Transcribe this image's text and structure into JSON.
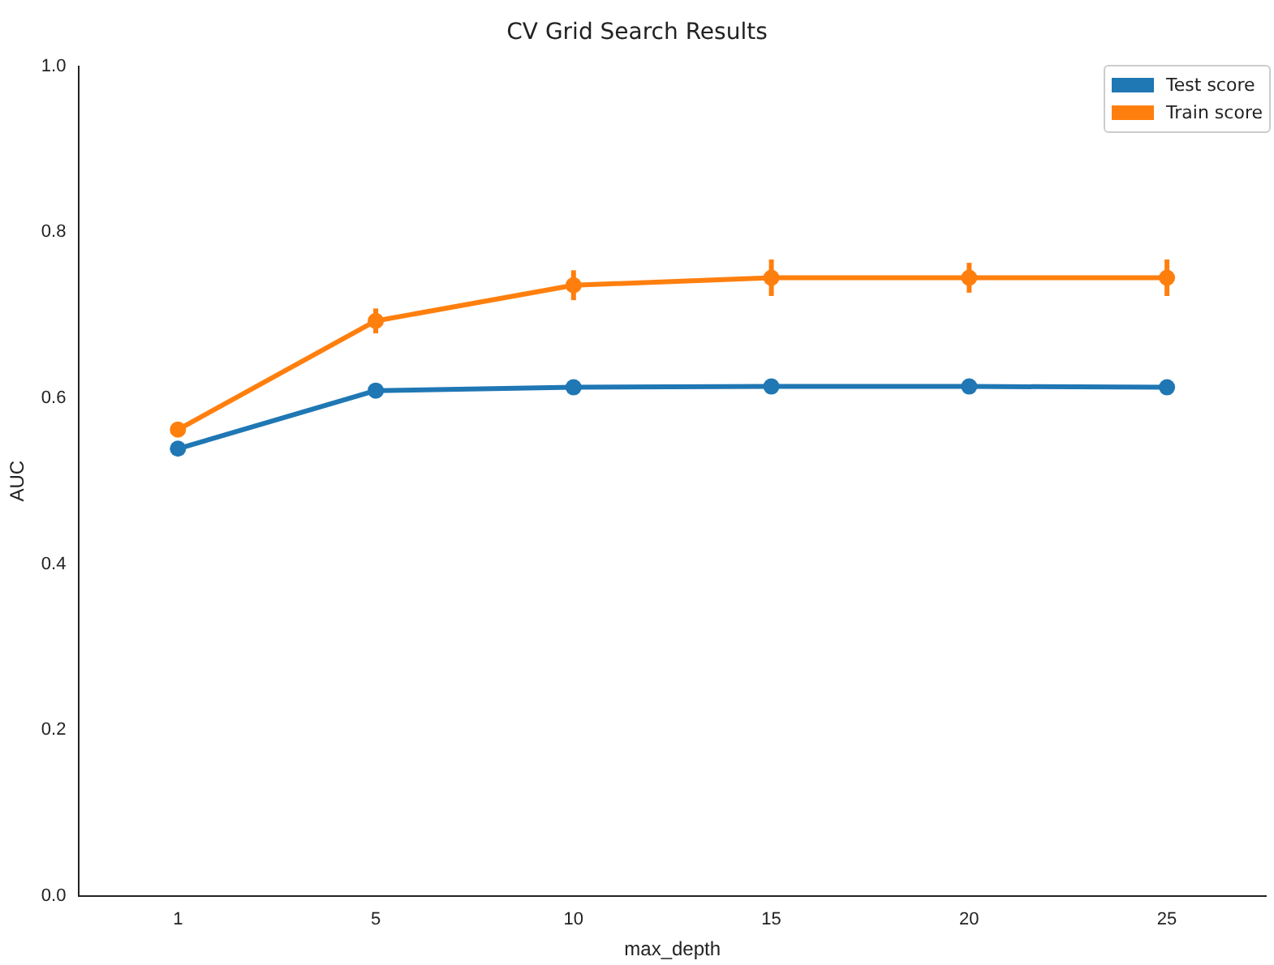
{
  "chart_data": {
    "type": "line",
    "title": "CV Grid Search Results",
    "xlabel": "max_depth",
    "ylabel": "AUC",
    "categories": [
      "1",
      "5",
      "10",
      "15",
      "20",
      "25"
    ],
    "series": [
      {
        "name": "Test score",
        "color": "#1f77b4",
        "values": [
          0.539,
          0.609,
          0.613,
          0.614,
          0.614,
          0.613
        ],
        "errors": [
          0.004,
          0.008,
          0.007,
          0.006,
          0.006,
          0.006
        ]
      },
      {
        "name": "Train score",
        "color": "#ff7f0e",
        "values": [
          0.562,
          0.693,
          0.736,
          0.745,
          0.745,
          0.745
        ],
        "errors": [
          0.005,
          0.015,
          0.018,
          0.022,
          0.018,
          0.022
        ]
      }
    ],
    "ylim": [
      0,
      1
    ],
    "yticks": [
      {
        "value": 0,
        "label": "0.0"
      },
      0.2,
      0.4,
      0.6,
      0.8,
      {
        "value": 1,
        "label": "1.0"
      }
    ],
    "grid": false,
    "legend": "top right",
    "marker": "circle",
    "line_style": "solid"
  }
}
